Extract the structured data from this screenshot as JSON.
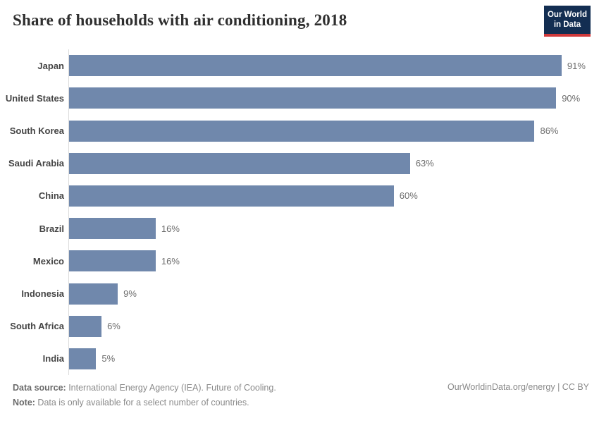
{
  "title": "Share of households with air conditioning, 2018",
  "logo": {
    "line1": "Our World",
    "line2": "in Data",
    "background": "#132e52",
    "accent": "#d0393b"
  },
  "chart_data": {
    "type": "bar",
    "orientation": "horizontal",
    "title": "Share of households with air conditioning, 2018",
    "categories": [
      "Japan",
      "United States",
      "South Korea",
      "Saudi Arabia",
      "China",
      "Brazil",
      "Mexico",
      "Indonesia",
      "South Africa",
      "India"
    ],
    "values": [
      91,
      90,
      86,
      63,
      60,
      16,
      16,
      9,
      6,
      5
    ],
    "value_labels": [
      "91%",
      "90%",
      "86%",
      "63%",
      "60%",
      "16%",
      "16%",
      "9%",
      "6%",
      "5%"
    ],
    "unit": "%",
    "xlabel": "",
    "ylabel": "",
    "xlim": [
      0,
      100
    ],
    "grid": false,
    "legend": "none",
    "bar_color": "#7088ac"
  },
  "footer": {
    "source_label": "Data source:",
    "source_text": " International Energy Agency (IEA). Future of Cooling.",
    "note_label": "Note:",
    "note_text": " Data is only available for a select number of countries.",
    "right_text": "OurWorldinData.org/energy | CC BY"
  }
}
